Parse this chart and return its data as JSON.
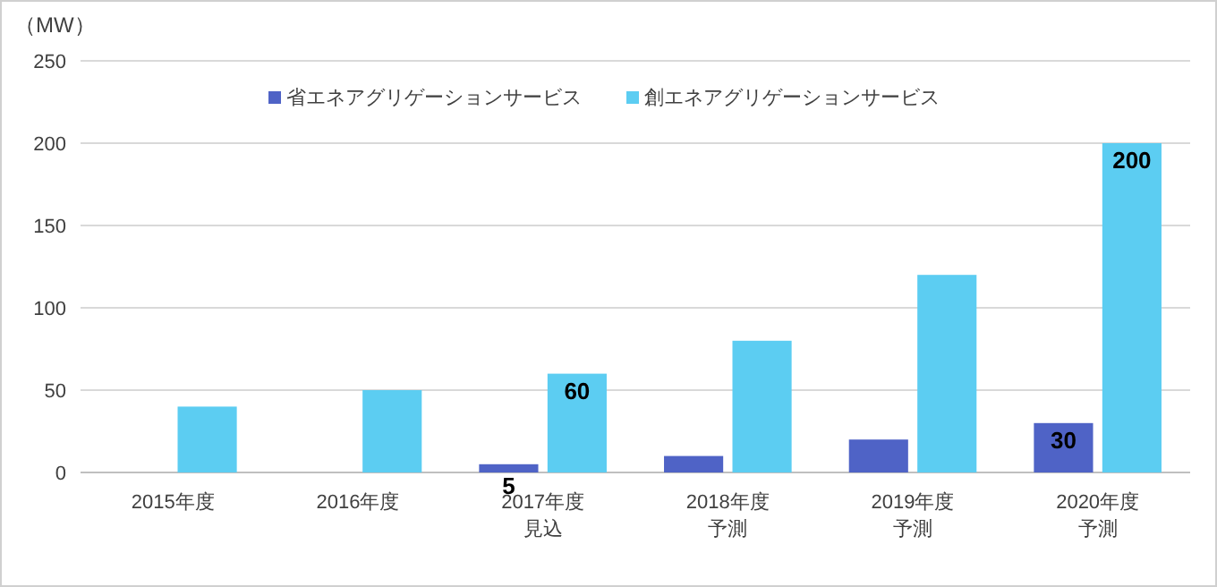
{
  "chart_data": {
    "type": "bar",
    "ylabel": "（MW）",
    "categories": [
      "2015年度",
      "2016年度",
      "2017年度見込",
      "2018年度予測",
      "2019年度予測",
      "2020年度予測"
    ],
    "series": [
      {
        "name": "省エネアグリゲーションサービス",
        "color": "#4f63c6",
        "values": [
          null,
          null,
          5,
          10,
          20,
          30
        ],
        "value_labels": [
          null,
          null,
          "5",
          null,
          null,
          "30"
        ]
      },
      {
        "name": "創エネアグリゲーションサービス",
        "color": "#5ccdf2",
        "values": [
          40,
          50,
          60,
          80,
          120,
          200
        ],
        "value_labels": [
          null,
          null,
          "60",
          null,
          null,
          "200"
        ]
      }
    ],
    "ylim": [
      0,
      250
    ],
    "yticks": [
      0,
      50,
      100,
      150,
      200,
      250
    ],
    "grid": "y",
    "legend": "top"
  }
}
